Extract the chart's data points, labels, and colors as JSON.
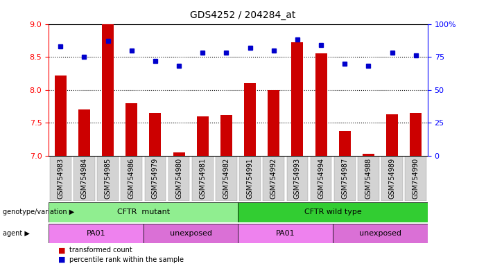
{
  "title": "GDS4252 / 204284_at",
  "samples": [
    "GSM754983",
    "GSM754984",
    "GSM754985",
    "GSM754986",
    "GSM754979",
    "GSM754980",
    "GSM754981",
    "GSM754982",
    "GSM754991",
    "GSM754992",
    "GSM754993",
    "GSM754994",
    "GSM754987",
    "GSM754988",
    "GSM754989",
    "GSM754990"
  ],
  "bar_values": [
    8.22,
    7.7,
    9.0,
    7.8,
    7.65,
    7.05,
    7.6,
    7.62,
    8.1,
    8.0,
    8.72,
    8.55,
    7.37,
    7.03,
    7.63,
    7.65
  ],
  "dot_values": [
    83,
    75,
    87,
    80,
    72,
    68,
    78,
    78,
    82,
    80,
    88,
    84,
    70,
    68,
    78,
    76
  ],
  "ylim_left": [
    7,
    9
  ],
  "ylim_right": [
    0,
    100
  ],
  "yticks_left": [
    7,
    7.5,
    8,
    8.5,
    9
  ],
  "yticks_right": [
    0,
    25,
    50,
    75,
    100
  ],
  "ytick_labels_right": [
    "0",
    "25",
    "50",
    "75",
    "100%"
  ],
  "grid_values": [
    7.5,
    8.0,
    8.5
  ],
  "bar_color": "#CC0000",
  "dot_color": "#0000CC",
  "bar_bottom": 7,
  "groups": [
    {
      "label": "CFTR  mutant",
      "start": 0,
      "end": 8,
      "color": "#90EE90"
    },
    {
      "label": "CFTR wild type",
      "start": 8,
      "end": 16,
      "color": "#32CD32"
    }
  ],
  "agents": [
    {
      "label": "PA01",
      "start": 0,
      "end": 4,
      "color": "#EE82EE"
    },
    {
      "label": "unexposed",
      "start": 4,
      "end": 8,
      "color": "#DA70D6"
    },
    {
      "label": "PA01",
      "start": 8,
      "end": 12,
      "color": "#EE82EE"
    },
    {
      "label": "unexposed",
      "start": 12,
      "end": 16,
      "color": "#DA70D6"
    }
  ],
  "legend_items": [
    {
      "label": "transformed count",
      "color": "#CC0000"
    },
    {
      "label": "percentile rank within the sample",
      "color": "#0000CC"
    }
  ],
  "tick_bg_color": "#D3D3D3",
  "title_fontsize": 10,
  "axis_label_fontsize": 8,
  "tick_label_fontsize": 7
}
